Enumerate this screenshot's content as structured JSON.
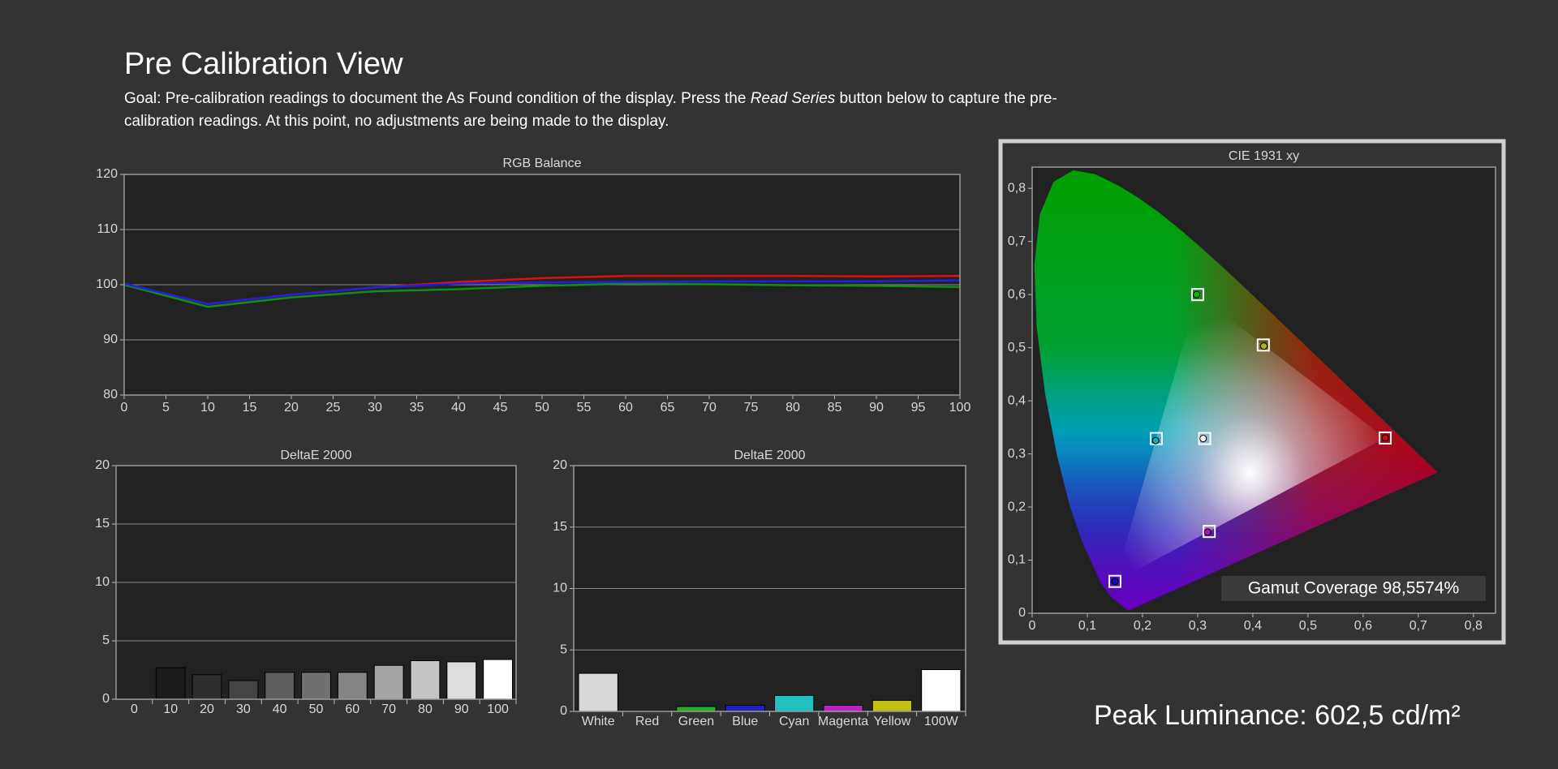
{
  "header": {
    "title": "Pre Calibration View",
    "description": [
      "Goal: Pre-calibration readings to document the As Found condition of the display. Press the ",
      "Read Series",
      " button below to capture the pre-calibration readings. At this point, no adjustments are being made to the display."
    ]
  },
  "chart_data": [
    {
      "type": "line",
      "title": "RGB Balance",
      "x": [
        0,
        10,
        20,
        30,
        40,
        50,
        60,
        70,
        80,
        90,
        100
      ],
      "xlim": [
        0,
        100
      ],
      "xticks": [
        0,
        5,
        10,
        15,
        20,
        25,
        30,
        35,
        40,
        45,
        50,
        55,
        60,
        65,
        70,
        75,
        80,
        85,
        90,
        95,
        100
      ],
      "ylim": [
        80,
        120
      ],
      "yticks": [
        80,
        90,
        100,
        110,
        120
      ],
      "grid": true,
      "series": [
        {
          "color": "#e01010",
          "values": [
            100.2,
            96.5,
            98.2,
            99.5,
            100.5,
            101.2,
            101.6,
            101.6,
            101.6,
            101.5,
            101.6
          ]
        },
        {
          "color": "#109010",
          "values": [
            100.0,
            96.0,
            97.7,
            98.8,
            99.2,
            99.8,
            100.2,
            100.1,
            99.9,
            99.8,
            99.6
          ]
        },
        {
          "color": "#2020e0",
          "values": [
            100.2,
            96.5,
            98.2,
            99.5,
            100.2,
            100.4,
            100.5,
            100.6,
            100.6,
            100.6,
            100.8
          ]
        }
      ]
    },
    {
      "type": "bar",
      "title": "DeltaE 2000",
      "categories": [
        "0",
        "10",
        "20",
        "30",
        "40",
        "50",
        "60",
        "70",
        "80",
        "90",
        "100"
      ],
      "values": [
        null,
        2.7,
        2.1,
        1.6,
        2.3,
        2.3,
        2.3,
        2.9,
        3.3,
        3.2,
        3.4
      ],
      "colors": [
        null,
        "#1a1a1a",
        "#2e2e2e",
        "#444444",
        "#5e5e5e",
        "#707070",
        "#858585",
        "#a5a5a5",
        "#c4c4c4",
        "#dddddd",
        "#ffffff"
      ],
      "ylim": [
        0,
        20
      ],
      "yticks": [
        0,
        5,
        10,
        15,
        20
      ],
      "grid": true
    },
    {
      "type": "bar",
      "title": "DeltaE 2000",
      "categories": [
        "White",
        "Red",
        "Green",
        "Blue",
        "Cyan",
        "Magenta",
        "Yellow",
        "100W"
      ],
      "values": [
        3.1,
        0,
        0.4,
        0.5,
        1.3,
        0.5,
        0.9,
        3.4
      ],
      "colors": [
        "#d8d8d8",
        "#d01010",
        "#20b020",
        "#2020c0",
        "#20c0c0",
        "#c020c0",
        "#c0c010",
        "#ffffff"
      ],
      "ylim": [
        0,
        20
      ],
      "yticks": [
        0,
        5,
        10,
        15,
        20
      ],
      "grid": true
    },
    {
      "type": "scatter",
      "title": "CIE 1931 xy",
      "xlim": [
        0,
        0.84
      ],
      "xticks": [
        0,
        {
          "value": 0.1,
          "label": "0,1"
        },
        {
          "value": 0.2,
          "label": "0,2"
        },
        {
          "value": 0.3,
          "label": "0,3"
        },
        {
          "value": 0.4,
          "label": "0,4"
        },
        {
          "value": 0.5,
          "label": "0,5"
        },
        {
          "value": 0.6,
          "label": "0,6"
        },
        {
          "value": 0.7,
          "label": "0,7"
        },
        {
          "value": 0.8,
          "label": "0,8"
        }
      ],
      "ylim": [
        0,
        0.84
      ],
      "yticks": [
        0,
        {
          "value": 0.1,
          "label": "0,1"
        },
        {
          "value": 0.2,
          "label": "0,2"
        },
        {
          "value": 0.3,
          "label": "0,3"
        },
        {
          "value": 0.4,
          "label": "0,4"
        },
        {
          "value": 0.5,
          "label": "0,5"
        },
        {
          "value": 0.6,
          "label": "0,6"
        },
        {
          "value": 0.7,
          "label": "0,7"
        },
        {
          "value": 0.8,
          "label": "0,8"
        }
      ],
      "grid": false,
      "series": [
        {
          "marker": "square",
          "color": "#ffffff",
          "x": [
            0.64,
            0.3,
            0.15,
            0.3127,
            0.225,
            0.321,
            0.419
          ],
          "values": [
            0.33,
            0.6,
            0.06,
            0.329,
            0.329,
            0.154,
            0.505
          ]
        },
        {
          "marker": "circle",
          "colors": [
            "#c01010",
            "#10b010",
            "#1010c0",
            "#ffffff",
            "#10b0b0",
            "#b010b0",
            "#b0b010"
          ],
          "x": [
            0.64,
            0.298,
            0.15,
            0.31,
            0.224,
            0.318,
            0.42
          ],
          "values": [
            0.33,
            0.6,
            0.06,
            0.329,
            0.325,
            0.153,
            0.503
          ]
        }
      ],
      "annotation": "Gamut Coverage 98,5574%"
    }
  ],
  "footer": {
    "peak_luminance": "Peak Luminance: 602,5 cd/m²"
  }
}
